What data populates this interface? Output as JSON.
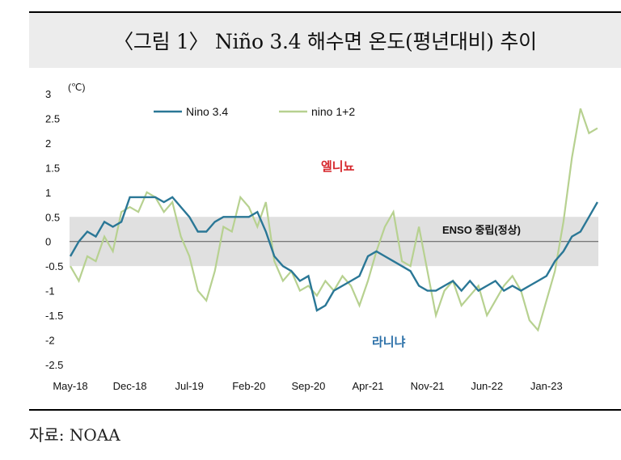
{
  "title": "〈그림 1〉 Niño 3.4 해수면 온도(평년대비) 추이",
  "source": "자료: NOAA",
  "colors": {
    "nino34": "#2a7796",
    "nino12": "#b7d190",
    "neutral_band": "#e0e0e0"
  },
  "chart_data": {
    "type": "line",
    "unit_label": "(℃)",
    "ylim": [
      -2.5,
      3
    ],
    "yticks": [
      "3",
      "2.5",
      "2",
      "1.5",
      "1",
      "0.5",
      "0",
      "-0.5",
      "-1",
      "-1.5",
      "-2",
      "-2.5"
    ],
    "xticks": [
      "May-18",
      "Dec-18",
      "Jul-19",
      "Feb-20",
      "Sep-20",
      "Apr-21",
      "Nov-21",
      "Jun-22",
      "Jan-23"
    ],
    "legend": [
      "Nino 3.4",
      "nino 1+2"
    ],
    "annotations": {
      "el_nino": "엘니뇨",
      "la_nina": "라니냐",
      "neutral": "ENSO 중립(정상)"
    },
    "neutral_band": [
      -0.5,
      0.5
    ],
    "series": [
      {
        "name": "Nino 3.4",
        "x": [
          "2018-05",
          "2018-06",
          "2018-07",
          "2018-08",
          "2018-09",
          "2018-10",
          "2018-11",
          "2018-12",
          "2019-01",
          "2019-02",
          "2019-03",
          "2019-04",
          "2019-05",
          "2019-06",
          "2019-07",
          "2019-08",
          "2019-09",
          "2019-10",
          "2019-11",
          "2019-12",
          "2020-01",
          "2020-02",
          "2020-03",
          "2020-04",
          "2020-05",
          "2020-06",
          "2020-07",
          "2020-08",
          "2020-09",
          "2020-10",
          "2020-11",
          "2020-12",
          "2021-01",
          "2021-02",
          "2021-03",
          "2021-04",
          "2021-05",
          "2021-06",
          "2021-07",
          "2021-08",
          "2021-09",
          "2021-10",
          "2021-11",
          "2021-12",
          "2022-01",
          "2022-02",
          "2022-03",
          "2022-04",
          "2022-05",
          "2022-06",
          "2022-07",
          "2022-08",
          "2022-09",
          "2022-10",
          "2022-11",
          "2022-12",
          "2023-01",
          "2023-02",
          "2023-03",
          "2023-04",
          "2023-05",
          "2023-06",
          "2023-07"
        ],
        "values": [
          -0.3,
          0.0,
          0.2,
          0.1,
          0.4,
          0.3,
          0.4,
          0.9,
          0.9,
          0.9,
          0.9,
          0.8,
          0.9,
          0.7,
          0.5,
          0.2,
          0.2,
          0.4,
          0.5,
          0.5,
          0.5,
          0.5,
          0.6,
          0.2,
          -0.3,
          -0.5,
          -0.6,
          -0.8,
          -0.7,
          -1.4,
          -1.3,
          -1.0,
          -0.9,
          -0.8,
          -0.7,
          -0.3,
          -0.2,
          -0.3,
          -0.4,
          -0.5,
          -0.6,
          -0.9,
          -1.0,
          -1.0,
          -0.9,
          -0.8,
          -1.0,
          -0.8,
          -1.0,
          -0.9,
          -0.8,
          -1.0,
          -0.9,
          -1.0,
          -0.9,
          -0.8,
          -0.7,
          -0.4,
          -0.2,
          0.1,
          0.2,
          0.5,
          0.8
        ]
      },
      {
        "name": "nino 1+2",
        "x": [
          "2018-05",
          "2018-06",
          "2018-07",
          "2018-08",
          "2018-09",
          "2018-10",
          "2018-11",
          "2018-12",
          "2019-01",
          "2019-02",
          "2019-03",
          "2019-04",
          "2019-05",
          "2019-06",
          "2019-07",
          "2019-08",
          "2019-09",
          "2019-10",
          "2019-11",
          "2019-12",
          "2020-01",
          "2020-02",
          "2020-03",
          "2020-04",
          "2020-05",
          "2020-06",
          "2020-07",
          "2020-08",
          "2020-09",
          "2020-10",
          "2020-11",
          "2020-12",
          "2021-01",
          "2021-02",
          "2021-03",
          "2021-04",
          "2021-05",
          "2021-06",
          "2021-07",
          "2021-08",
          "2021-09",
          "2021-10",
          "2021-11",
          "2021-12",
          "2022-01",
          "2022-02",
          "2022-03",
          "2022-04",
          "2022-05",
          "2022-06",
          "2022-07",
          "2022-08",
          "2022-09",
          "2022-10",
          "2022-11",
          "2022-12",
          "2023-01",
          "2023-02",
          "2023-03",
          "2023-04",
          "2023-05",
          "2023-06",
          "2023-07"
        ],
        "values": [
          -0.5,
          -0.8,
          -0.3,
          -0.4,
          0.1,
          -0.2,
          0.6,
          0.7,
          0.6,
          1.0,
          0.9,
          0.6,
          0.8,
          0.1,
          -0.3,
          -1.0,
          -1.2,
          -0.6,
          0.3,
          0.2,
          0.9,
          0.7,
          0.3,
          0.8,
          -0.4,
          -0.8,
          -0.6,
          -1.0,
          -0.9,
          -1.1,
          -0.8,
          -1.0,
          -0.7,
          -0.9,
          -1.3,
          -0.8,
          -0.2,
          0.3,
          0.6,
          -0.4,
          -0.5,
          0.3,
          -0.6,
          -1.5,
          -1.0,
          -0.8,
          -1.3,
          -1.1,
          -0.9,
          -1.5,
          -1.2,
          -0.9,
          -0.7,
          -1.0,
          -1.6,
          -1.8,
          -1.2,
          -0.6,
          0.4,
          1.7,
          2.7,
          2.2,
          2.3
        ]
      }
    ]
  }
}
